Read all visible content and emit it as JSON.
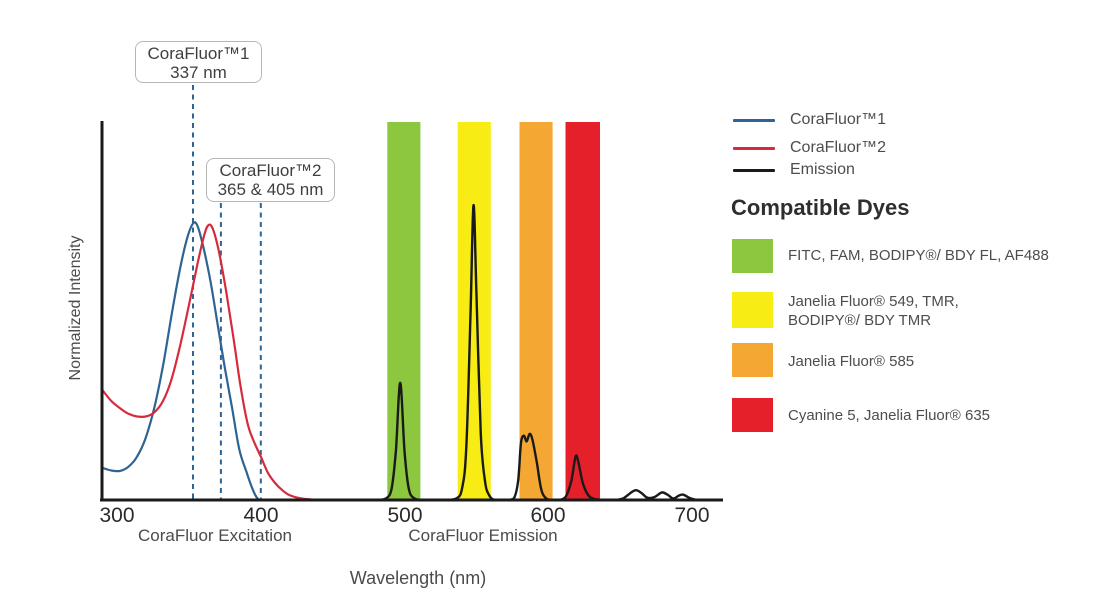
{
  "colors": {
    "blue": "#2d6493",
    "red": "#d62b3c",
    "black": "#1a1a1a",
    "green_band": "#8dc63f",
    "yellow_band": "#f7ec13",
    "orange_band": "#f5a733",
    "red_band": "#e5202a"
  },
  "chart": {
    "y_axis_label": "Normalized Intensity",
    "x_axis_label": "Wavelength (nm)",
    "tick_labels": [
      "300",
      "400",
      "500",
      "600",
      "700"
    ],
    "section_labels": {
      "excitation": "CoraFluor Excitation",
      "emission": "CoraFluor Emission"
    },
    "callouts": [
      {
        "line1": "CoraFluor™1",
        "line2": "337 nm"
      },
      {
        "line1": "CoraFluor™2",
        "line2": "365 & 405 nm"
      }
    ]
  },
  "legend": {
    "items": [
      {
        "label": "CoraFluor™1",
        "color": "#2d6493"
      },
      {
        "label": "CoraFluor™2",
        "color": "#d62b3c"
      },
      {
        "label": "Emission",
        "color": "#1a1a1a"
      }
    ],
    "heading": "Compatible Dyes",
    "dyes": [
      {
        "color": "#8dc63f",
        "line1": "FITC, FAM, BODIPY®/ BDY FL, AF488",
        "line2": ""
      },
      {
        "color": "#f7ec13",
        "line1": "Janelia Fluor® 549, TMR,",
        "line2": "BODIPY®/ BDY TMR"
      },
      {
        "color": "#f5a733",
        "line1": "Janelia Fluor® 585",
        "line2": ""
      },
      {
        "color": "#e5202a",
        "line1": "Cyanine 5, Janelia Fluor® 635",
        "line2": ""
      }
    ]
  },
  "chart_data": {
    "type": "line",
    "title": "",
    "xlabel": "Wavelength (nm)",
    "ylabel": "Normalized Intensity",
    "x_ticks": [
      300,
      400,
      500,
      600,
      700
    ],
    "xlim": [
      290,
      720
    ],
    "ylim": [
      0,
      1
    ],
    "grid": false,
    "legend_position": "right",
    "series": [
      {
        "name": "CoraFluor™1",
        "color": "#2d6493",
        "width": 2.2,
        "points": [
          [
            290,
            0.085
          ],
          [
            296,
            0.078
          ],
          [
            302,
            0.077
          ],
          [
            308,
            0.088
          ],
          [
            314,
            0.115
          ],
          [
            320,
            0.165
          ],
          [
            326,
            0.245
          ],
          [
            332,
            0.355
          ],
          [
            338,
            0.49
          ],
          [
            344,
            0.615
          ],
          [
            349,
            0.695
          ],
          [
            353,
            0.732
          ],
          [
            356,
            0.725
          ],
          [
            360,
            0.67
          ],
          [
            365,
            0.58
          ],
          [
            370,
            0.465
          ],
          [
            375,
            0.35
          ],
          [
            380,
            0.245
          ],
          [
            385,
            0.135
          ],
          [
            390,
            0.075
          ],
          [
            394,
            0.032
          ],
          [
            397,
            0.008
          ],
          [
            399,
            0
          ]
        ]
      },
      {
        "name": "CoraFluor™2",
        "color": "#d62b3c",
        "width": 2.2,
        "points": [
          [
            290,
            0.29
          ],
          [
            296,
            0.262
          ],
          [
            302,
            0.243
          ],
          [
            308,
            0.228
          ],
          [
            314,
            0.221
          ],
          [
            320,
            0.221
          ],
          [
            326,
            0.232
          ],
          [
            332,
            0.262
          ],
          [
            338,
            0.32
          ],
          [
            344,
            0.41
          ],
          [
            350,
            0.515
          ],
          [
            356,
            0.625
          ],
          [
            361,
            0.705
          ],
          [
            364,
            0.728
          ],
          [
            367,
            0.714
          ],
          [
            371,
            0.655
          ],
          [
            376,
            0.55
          ],
          [
            381,
            0.43
          ],
          [
            386,
            0.3
          ],
          [
            391,
            0.2
          ],
          [
            396,
            0.148
          ],
          [
            400,
            0.115
          ],
          [
            405,
            0.072
          ],
          [
            410,
            0.045
          ],
          [
            415,
            0.026
          ],
          [
            420,
            0.013
          ],
          [
            427,
            0.005
          ],
          [
            436,
            0.001
          ],
          [
            446,
            0
          ],
          [
            470,
            0
          ]
        ]
      },
      {
        "name": "Emission",
        "color": "#1a1a1a",
        "width": 2.4,
        "points": [
          [
            468,
            0
          ],
          [
            480,
            0
          ],
          [
            487,
            0.004
          ],
          [
            491,
            0.03
          ],
          [
            494,
            0.13
          ],
          [
            497,
            0.31
          ],
          [
            500,
            0.13
          ],
          [
            503,
            0.03
          ],
          [
            507,
            0.004
          ],
          [
            514,
            0
          ],
          [
            528,
            0
          ],
          [
            536,
            0.004
          ],
          [
            540,
            0.03
          ],
          [
            543,
            0.14
          ],
          [
            546,
            0.5
          ],
          [
            548,
            0.78
          ],
          [
            550,
            0.55
          ],
          [
            553,
            0.18
          ],
          [
            556,
            0.05
          ],
          [
            559,
            0.012
          ],
          [
            563,
            0
          ],
          [
            571,
            0
          ],
          [
            576,
            0.004
          ],
          [
            579,
            0.05
          ],
          [
            581,
            0.15
          ],
          [
            583,
            0.17
          ],
          [
            585,
            0.155
          ],
          [
            587,
            0.175
          ],
          [
            589,
            0.16
          ],
          [
            592,
            0.1
          ],
          [
            595,
            0.03
          ],
          [
            598,
            0.006
          ],
          [
            602,
            0
          ],
          [
            607,
            0
          ],
          [
            612,
            0.008
          ],
          [
            616,
            0.05
          ],
          [
            619,
            0.115
          ],
          [
            621,
            0.1
          ],
          [
            624,
            0.045
          ],
          [
            628,
            0.012
          ],
          [
            632,
            0.003
          ],
          [
            638,
            0
          ],
          [
            646,
            0
          ],
          [
            652,
            0.004
          ],
          [
            657,
            0.018
          ],
          [
            661,
            0.026
          ],
          [
            665,
            0.018
          ],
          [
            669,
            0.006
          ],
          [
            674,
            0.008
          ],
          [
            679,
            0.02
          ],
          [
            683,
            0.014
          ],
          [
            687,
            0.004
          ],
          [
            691,
            0.012
          ],
          [
            694,
            0.014
          ],
          [
            698,
            0.006
          ],
          [
            702,
            0.001
          ],
          [
            706,
            0
          ]
        ]
      }
    ],
    "filter_bands": [
      {
        "name": "FITC, FAM, BODIPY®/ BDY FL, AF488",
        "color": "#8dc63f",
        "from_nm": 488,
        "to_nm": 511
      },
      {
        "name": "Janelia Fluor® 549, TMR, BODIPY®/ BDY TMR",
        "color": "#f7ec13",
        "from_nm": 537,
        "to_nm": 560
      },
      {
        "name": "Janelia Fluor® 585",
        "color": "#f5a733",
        "from_nm": 580,
        "to_nm": 603
      },
      {
        "name": "Cyanine 5, Janelia Fluor® 635",
        "color": "#e5202a",
        "from_nm": 612,
        "to_nm": 636
      }
    ],
    "excitation_markers": [
      {
        "label": "CoraFluor™1 337 nm",
        "wavelengths_nm": [
          337
        ],
        "plot_nm": [
          352.9
        ]
      },
      {
        "label": "CoraFluor™2 365 & 405 nm",
        "wavelengths_nm": [
          365,
          405
        ],
        "plot_nm": [
          372.3,
          400
        ]
      }
    ],
    "axis_section_labels": [
      "CoraFluor Excitation",
      "CoraFluor Emission"
    ]
  }
}
